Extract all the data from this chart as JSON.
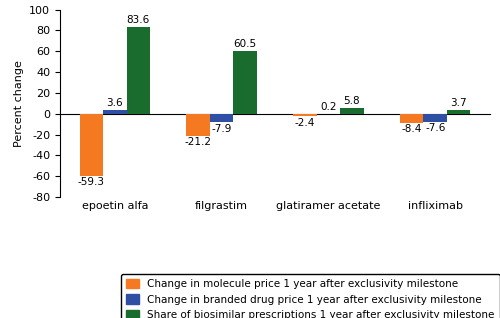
{
  "categories": [
    "epoetin alfa",
    "filgrastim",
    "glatiramer acetate",
    "infliximab"
  ],
  "series": {
    "molecule": [
      -59.3,
      -21.2,
      -2.4,
      -8.4
    ],
    "branded": [
      3.6,
      -7.9,
      0.2,
      -7.6
    ],
    "biosimilar": [
      83.6,
      60.5,
      5.8,
      3.7
    ]
  },
  "colors": {
    "molecule": "#F47920",
    "branded": "#2E4FA3",
    "biosimilar": "#1A6B2E"
  },
  "ylim": [
    -80,
    100
  ],
  "yticks": [
    -80,
    -60,
    -40,
    -20,
    0,
    20,
    40,
    60,
    80,
    100
  ],
  "ylabel": "Percent change",
  "legend_labels": [
    "Change in molecule price 1 year after exclusivity milestone",
    "Change in branded drug price 1 year after exclusivity milestone",
    "Share of biosimilar prescriptions 1 year after exclusivity milestone"
  ],
  "bar_width": 0.22,
  "label_fontsize": 7.5,
  "axis_fontsize": 8,
  "legend_fontsize": 7.5
}
